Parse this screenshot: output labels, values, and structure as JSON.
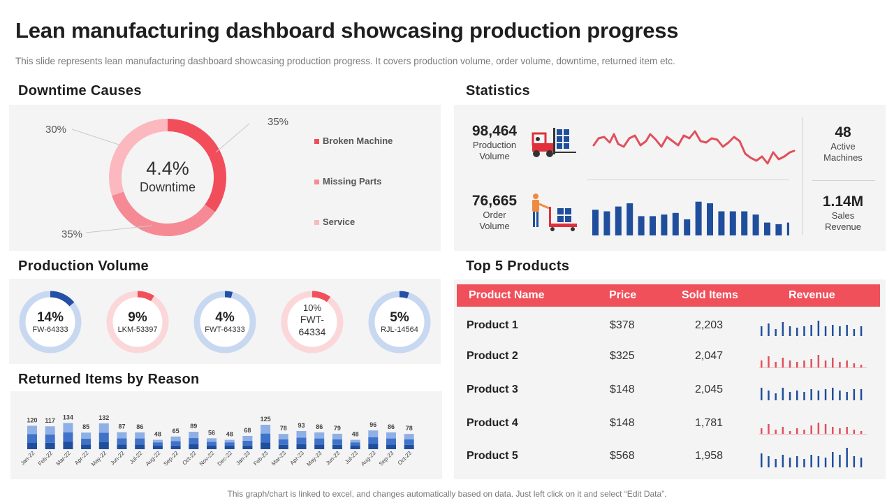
{
  "header": {
    "title": "Lean manufacturing dashboard showcasing production progress",
    "subtitle": "This slide represents lean manufacturing dashboard showcasing production progress. It covers production volume, order volume, downtime, returned item etc."
  },
  "downtime": {
    "section_title": "Downtime Causes",
    "center_value": "4.4%",
    "center_label": "Downtime",
    "slices": [
      {
        "label": "Broken Machine",
        "percent_label": "35%",
        "value": 35,
        "color": "#f24d5b"
      },
      {
        "label": "Missing Parts",
        "percent_label": "35%",
        "value": 35,
        "color": "#f58a95"
      },
      {
        "label": "Service",
        "percent_label": "30%",
        "value": 30,
        "color": "#fbb8bf"
      }
    ]
  },
  "statistics": {
    "section_title": "Statistics",
    "production_volume": {
      "value": "98,464",
      "label_line1": "Production",
      "label_line2": "Volume"
    },
    "order_volume": {
      "value": "76,665",
      "label_line1": "Order",
      "label_line2": "Volume"
    },
    "active_machines": {
      "value": "48",
      "label_line1": "Active",
      "label_line2": "Machines"
    },
    "sales_revenue": {
      "value": "1.14M",
      "label_line1": "Sales",
      "label_line2": "Revenue"
    },
    "sparkline_color": "#e0505c",
    "bars_color": "#1f4e9c"
  },
  "production_volume": {
    "section_title": "Production Volume",
    "donuts": [
      {
        "percent": "14%",
        "label": "FW-64333",
        "value": 14,
        "color": "#2450a6",
        "track": "#c8d8f0"
      },
      {
        "percent": "9%",
        "label": "LKM-53397",
        "value": 9,
        "color": "#f0505a",
        "track": "#fbd7da"
      },
      {
        "percent": "4%",
        "label": "FWT-64333",
        "value": 4,
        "color": "#2450a6",
        "track": "#c8d8f0"
      },
      {
        "percent": "10%",
        "label": "FWT-64334",
        "label_line1": "FWT-",
        "label_line2": "64334",
        "value": 10,
        "color": "#f0505a",
        "track": "#fbd7da"
      },
      {
        "percent": "5%",
        "label": "RJL-14564",
        "value": 5,
        "color": "#2450a6",
        "track": "#c8d8f0"
      }
    ]
  },
  "returned_items": {
    "section_title": "Returned Items by Reason",
    "chart_data": {
      "type": "bar",
      "title": "Returned Items by Reason",
      "categories": [
        "Jan-22",
        "Feb-22",
        "Mar-22",
        "Apr-22",
        "May-22",
        "Jun-22",
        "Jul-22",
        "Aug-22",
        "Sep-22",
        "Oct-22",
        "Nov-22",
        "Dec-22",
        "Jan-23",
        "Feb-23",
        "Mar-23",
        "Apr-23",
        "May-23",
        "Jun-23",
        "Jul-23",
        "Aug-23",
        "Sep-23",
        "Oct-23"
      ],
      "values": [
        120,
        117,
        134,
        85,
        132,
        87,
        86,
        48,
        65,
        89,
        56,
        48,
        68,
        125,
        78,
        93,
        86,
        79,
        48,
        96,
        86,
        78
      ],
      "colors": {
        "dark": "#1f4e9c",
        "mid": "#3f72c9",
        "light": "#8fb0e6"
      }
    }
  },
  "top_products": {
    "section_title": "Top 5 Products",
    "columns": [
      "Product Name",
      "Price",
      "Sold Items",
      "Revenue"
    ],
    "rows": [
      {
        "name": "Product 1",
        "price": "$378",
        "sold": "2,203",
        "color": "#1f4e9c"
      },
      {
        "name": "Product 2",
        "price": "$325",
        "sold": "2,047",
        "color": "#e0505c"
      },
      {
        "name": "Product 3",
        "price": "$148",
        "sold": "2,045",
        "color": "#1f4e9c"
      },
      {
        "name": "Product 4",
        "price": "$148",
        "sold": "1,781",
        "color": "#e0505c"
      },
      {
        "name": "Product 5",
        "price": "$568",
        "sold": "1,958",
        "color": "#1f4e9c"
      }
    ]
  },
  "footer": {
    "note": "This graph/chart is linked to excel, and changes automatically based on data. Just left click on it and select “Edit Data”."
  }
}
